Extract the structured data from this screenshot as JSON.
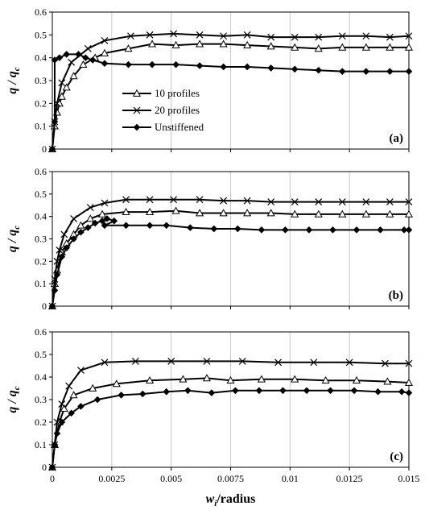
{
  "chart_data": [
    {
      "type": "line",
      "panel_label": "(a)",
      "ylabel_main": "q / q",
      "ylabel_sub": "c",
      "ylim": [
        0,
        0.6
      ],
      "xlim": [
        0,
        0.015
      ],
      "yticks": [
        "0",
        "0.1",
        "0.2",
        "0.3",
        "0.4",
        "0.5",
        "0.6"
      ],
      "grid": "vertical",
      "legend": {
        "placement": "center-left",
        "entries": [
          "10 profiles",
          "20 profiles",
          "Unstiffened"
        ]
      },
      "series": [
        {
          "name": "10 profiles",
          "marker": "triangle",
          "x": [
            0,
            0.0001,
            0.0002,
            0.0003,
            0.0004,
            0.0006,
            0.0009,
            0.0013,
            0.0018,
            0.0022,
            0.0032,
            0.0042,
            0.0052,
            0.0062,
            0.0072,
            0.0082,
            0.0092,
            0.0102,
            0.0112,
            0.0122,
            0.0132,
            0.0142,
            0.015
          ],
          "y": [
            0,
            0.1,
            0.16,
            0.2,
            0.23,
            0.27,
            0.32,
            0.37,
            0.4,
            0.42,
            0.44,
            0.46,
            0.455,
            0.46,
            0.46,
            0.455,
            0.45,
            0.445,
            0.44,
            0.445,
            0.445,
            0.445,
            0.445
          ]
        },
        {
          "name": "20 profiles",
          "marker": "x",
          "x": [
            0,
            0.0001,
            0.0002,
            0.0004,
            0.0008,
            0.0015,
            0.0022,
            0.0033,
            0.0041,
            0.0051,
            0.0062,
            0.0072,
            0.0082,
            0.0092,
            0.0102,
            0.0112,
            0.0122,
            0.0132,
            0.0142,
            0.015
          ],
          "y": [
            0,
            0.12,
            0.2,
            0.29,
            0.38,
            0.44,
            0.475,
            0.495,
            0.5,
            0.505,
            0.5,
            0.495,
            0.5,
            0.49,
            0.49,
            0.49,
            0.495,
            0.495,
            0.49,
            0.495
          ]
        },
        {
          "name": "Unstiffened",
          "marker": "diamond",
          "x": [
            0,
            0.0001,
            0.0001,
            0.0003,
            0.0006,
            0.0011,
            0.0014,
            0.0017,
            0.0022,
            0.0032,
            0.0042,
            0.0052,
            0.0062,
            0.0072,
            0.0082,
            0.0092,
            0.0102,
            0.0112,
            0.0122,
            0.0132,
            0.0142,
            0.015
          ],
          "y": [
            0,
            0.12,
            0.39,
            0.4,
            0.415,
            0.415,
            0.4,
            0.39,
            0.375,
            0.37,
            0.37,
            0.37,
            0.365,
            0.36,
            0.36,
            0.355,
            0.35,
            0.345,
            0.34,
            0.34,
            0.34,
            0.34
          ]
        }
      ]
    },
    {
      "type": "line",
      "panel_label": "(b)",
      "ylabel_main": "q / q",
      "ylabel_sub": "c",
      "ylim": [
        0,
        0.6
      ],
      "xlim": [
        0,
        0.015
      ],
      "yticks": [
        "0",
        "0.1",
        "0.2",
        "0.3",
        "0.4",
        "0.5",
        "0.6"
      ],
      "grid": "vertical",
      "series": [
        {
          "name": "10 profiles",
          "marker": "triangle",
          "x": [
            0,
            0.0001,
            0.0002,
            0.0004,
            0.0006,
            0.0009,
            0.0012,
            0.0016,
            0.0021,
            0.0031,
            0.0041,
            0.0052,
            0.0062,
            0.0072,
            0.0082,
            0.0092,
            0.0102,
            0.0112,
            0.0122,
            0.0132,
            0.0142,
            0.015
          ],
          "y": [
            0,
            0.1,
            0.16,
            0.24,
            0.28,
            0.32,
            0.36,
            0.39,
            0.41,
            0.42,
            0.42,
            0.425,
            0.415,
            0.415,
            0.415,
            0.415,
            0.41,
            0.41,
            0.41,
            0.41,
            0.41,
            0.41
          ],
          "marker_every": 1
        },
        {
          "name": "20 profiles",
          "marker": "x",
          "x": [
            0,
            0.0001,
            0.0002,
            0.0003,
            0.0005,
            0.0009,
            0.0016,
            0.0022,
            0.0031,
            0.0041,
            0.0051,
            0.0062,
            0.0072,
            0.0082,
            0.0092,
            0.0102,
            0.0112,
            0.0122,
            0.0132,
            0.0142,
            0.015
          ],
          "y": [
            0,
            0.12,
            0.2,
            0.25,
            0.32,
            0.39,
            0.44,
            0.46,
            0.475,
            0.475,
            0.475,
            0.475,
            0.47,
            0.47,
            0.465,
            0.465,
            0.465,
            0.465,
            0.465,
            0.465,
            0.465
          ]
        },
        {
          "name": "Unstiffened",
          "marker": "diamond",
          "x": [
            0,
            0.0001,
            0.0002,
            0.0004,
            0.0006,
            0.0009,
            0.0012,
            0.0015,
            0.0018,
            0.0021,
            0.0023,
            0.0026,
            0.0022,
            0.0031,
            0.0041,
            0.0048,
            0.0058,
            0.0068,
            0.0078,
            0.0088,
            0.0098,
            0.0108,
            0.0118,
            0.0128,
            0.0138,
            0.0148,
            0.015
          ],
          "y": [
            0,
            0.07,
            0.14,
            0.22,
            0.26,
            0.3,
            0.33,
            0.35,
            0.37,
            0.38,
            0.39,
            0.38,
            0.36,
            0.36,
            0.36,
            0.36,
            0.35,
            0.345,
            0.345,
            0.34,
            0.34,
            0.34,
            0.34,
            0.34,
            0.34,
            0.34,
            0.34
          ]
        }
      ]
    },
    {
      "type": "line",
      "panel_label": "(c)",
      "ylabel_main": "q / q",
      "ylabel_sub": "c",
      "ylim": [
        0,
        0.6
      ],
      "xlim": [
        0,
        0.015
      ],
      "yticks": [
        "0",
        "0.1",
        "0.2",
        "0.3",
        "0.4",
        "0.5",
        "0.6"
      ],
      "xticks": [
        "0",
        "0.0025",
        "0.005",
        "0.0075",
        "0.01",
        "0.0125",
        "0.015"
      ],
      "xlabel_sub": "i",
      "xlabel_main_pre": "w",
      "xlabel_main_post": "/radius",
      "grid": "vertical",
      "series": [
        {
          "name": "10 profiles",
          "marker": "triangle",
          "x": [
            0,
            0.0001,
            0.0003,
            0.0005,
            0.0009,
            0.0017,
            0.0027,
            0.0041,
            0.0055,
            0.0065,
            0.0075,
            0.0088,
            0.0102,
            0.0115,
            0.0128,
            0.0141,
            0.015
          ],
          "y": [
            0,
            0.1,
            0.2,
            0.26,
            0.32,
            0.35,
            0.37,
            0.385,
            0.39,
            0.395,
            0.385,
            0.39,
            0.39,
            0.385,
            0.385,
            0.38,
            0.375
          ]
        },
        {
          "name": "20 profiles",
          "marker": "x",
          "x": [
            0,
            0.0001,
            0.0002,
            0.0004,
            0.0007,
            0.0012,
            0.0022,
            0.0035,
            0.005,
            0.0065,
            0.008,
            0.0095,
            0.011,
            0.0125,
            0.014,
            0.015
          ],
          "y": [
            0,
            0.1,
            0.2,
            0.28,
            0.36,
            0.43,
            0.465,
            0.47,
            0.47,
            0.47,
            0.47,
            0.465,
            0.465,
            0.465,
            0.46,
            0.46
          ],
          "marker_every": 1
        },
        {
          "name": "Unstiffened",
          "marker": "diamond",
          "x": [
            0,
            0.0001,
            0.0002,
            0.0004,
            0.0008,
            0.0012,
            0.0019,
            0.0029,
            0.0038,
            0.0048,
            0.0057,
            0.0067,
            0.0077,
            0.0087,
            0.0097,
            0.0107,
            0.0117,
            0.0127,
            0.0137,
            0.0147,
            0.015
          ],
          "y": [
            0,
            0.1,
            0.15,
            0.2,
            0.24,
            0.27,
            0.3,
            0.32,
            0.325,
            0.335,
            0.34,
            0.33,
            0.34,
            0.34,
            0.34,
            0.34,
            0.34,
            0.34,
            0.335,
            0.335,
            0.33
          ]
        }
      ]
    }
  ]
}
